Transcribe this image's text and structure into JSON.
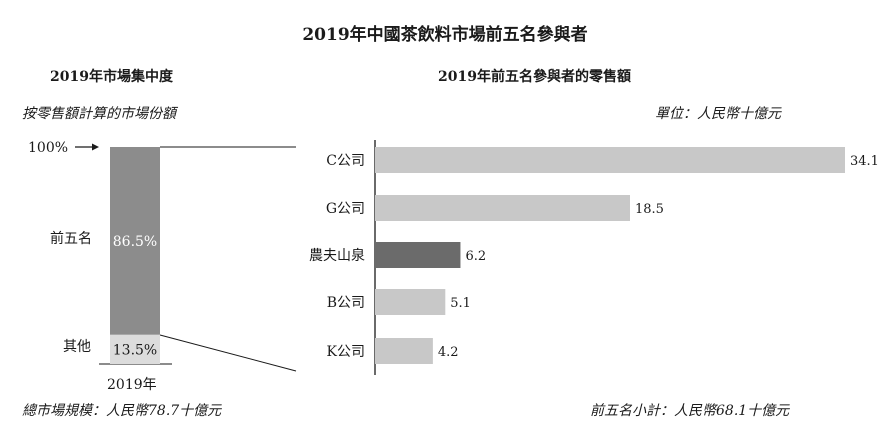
{
  "title": "2019年中國茶飲料市場前五名參與者",
  "colors": {
    "bar_light": "#c8c8c8",
    "bar_highlight": "#6b6b6b",
    "stack_top": "#8c8c8c",
    "stack_bottom": "#dcdcdc"
  },
  "chart_data": [
    {
      "type": "bar",
      "title": "2019年市場集中度",
      "subtitle": "按零售額計算的市場份額",
      "stacked": true,
      "categories": [
        "2019年"
      ],
      "series": [
        {
          "name": "前五名",
          "values": [
            86.5
          ],
          "label": "86.5%"
        },
        {
          "name": "其他",
          "values": [
            13.5
          ],
          "label": "13.5%"
        }
      ],
      "ylim": [
        0,
        100
      ],
      "ytick_label": "100%",
      "footnote": "總市場規模：人民幣78.7十億元"
    },
    {
      "type": "bar",
      "orientation": "horizontal",
      "title": "2019年前五名參與者的零售額",
      "unit": "單位：人民幣十億元",
      "categories": [
        "C公司",
        "G公司",
        "農夫山泉",
        "B公司",
        "K公司"
      ],
      "values": [
        34.1,
        18.5,
        6.2,
        5.1,
        4.2
      ],
      "value_labels": [
        "34.1",
        "18.5",
        "6.2",
        "5.1",
        "4.2"
      ],
      "highlight": "農夫山泉",
      "xlim": [
        0,
        34.1
      ],
      "footnote": "前五名小計：人民幣68.1十億元"
    }
  ]
}
